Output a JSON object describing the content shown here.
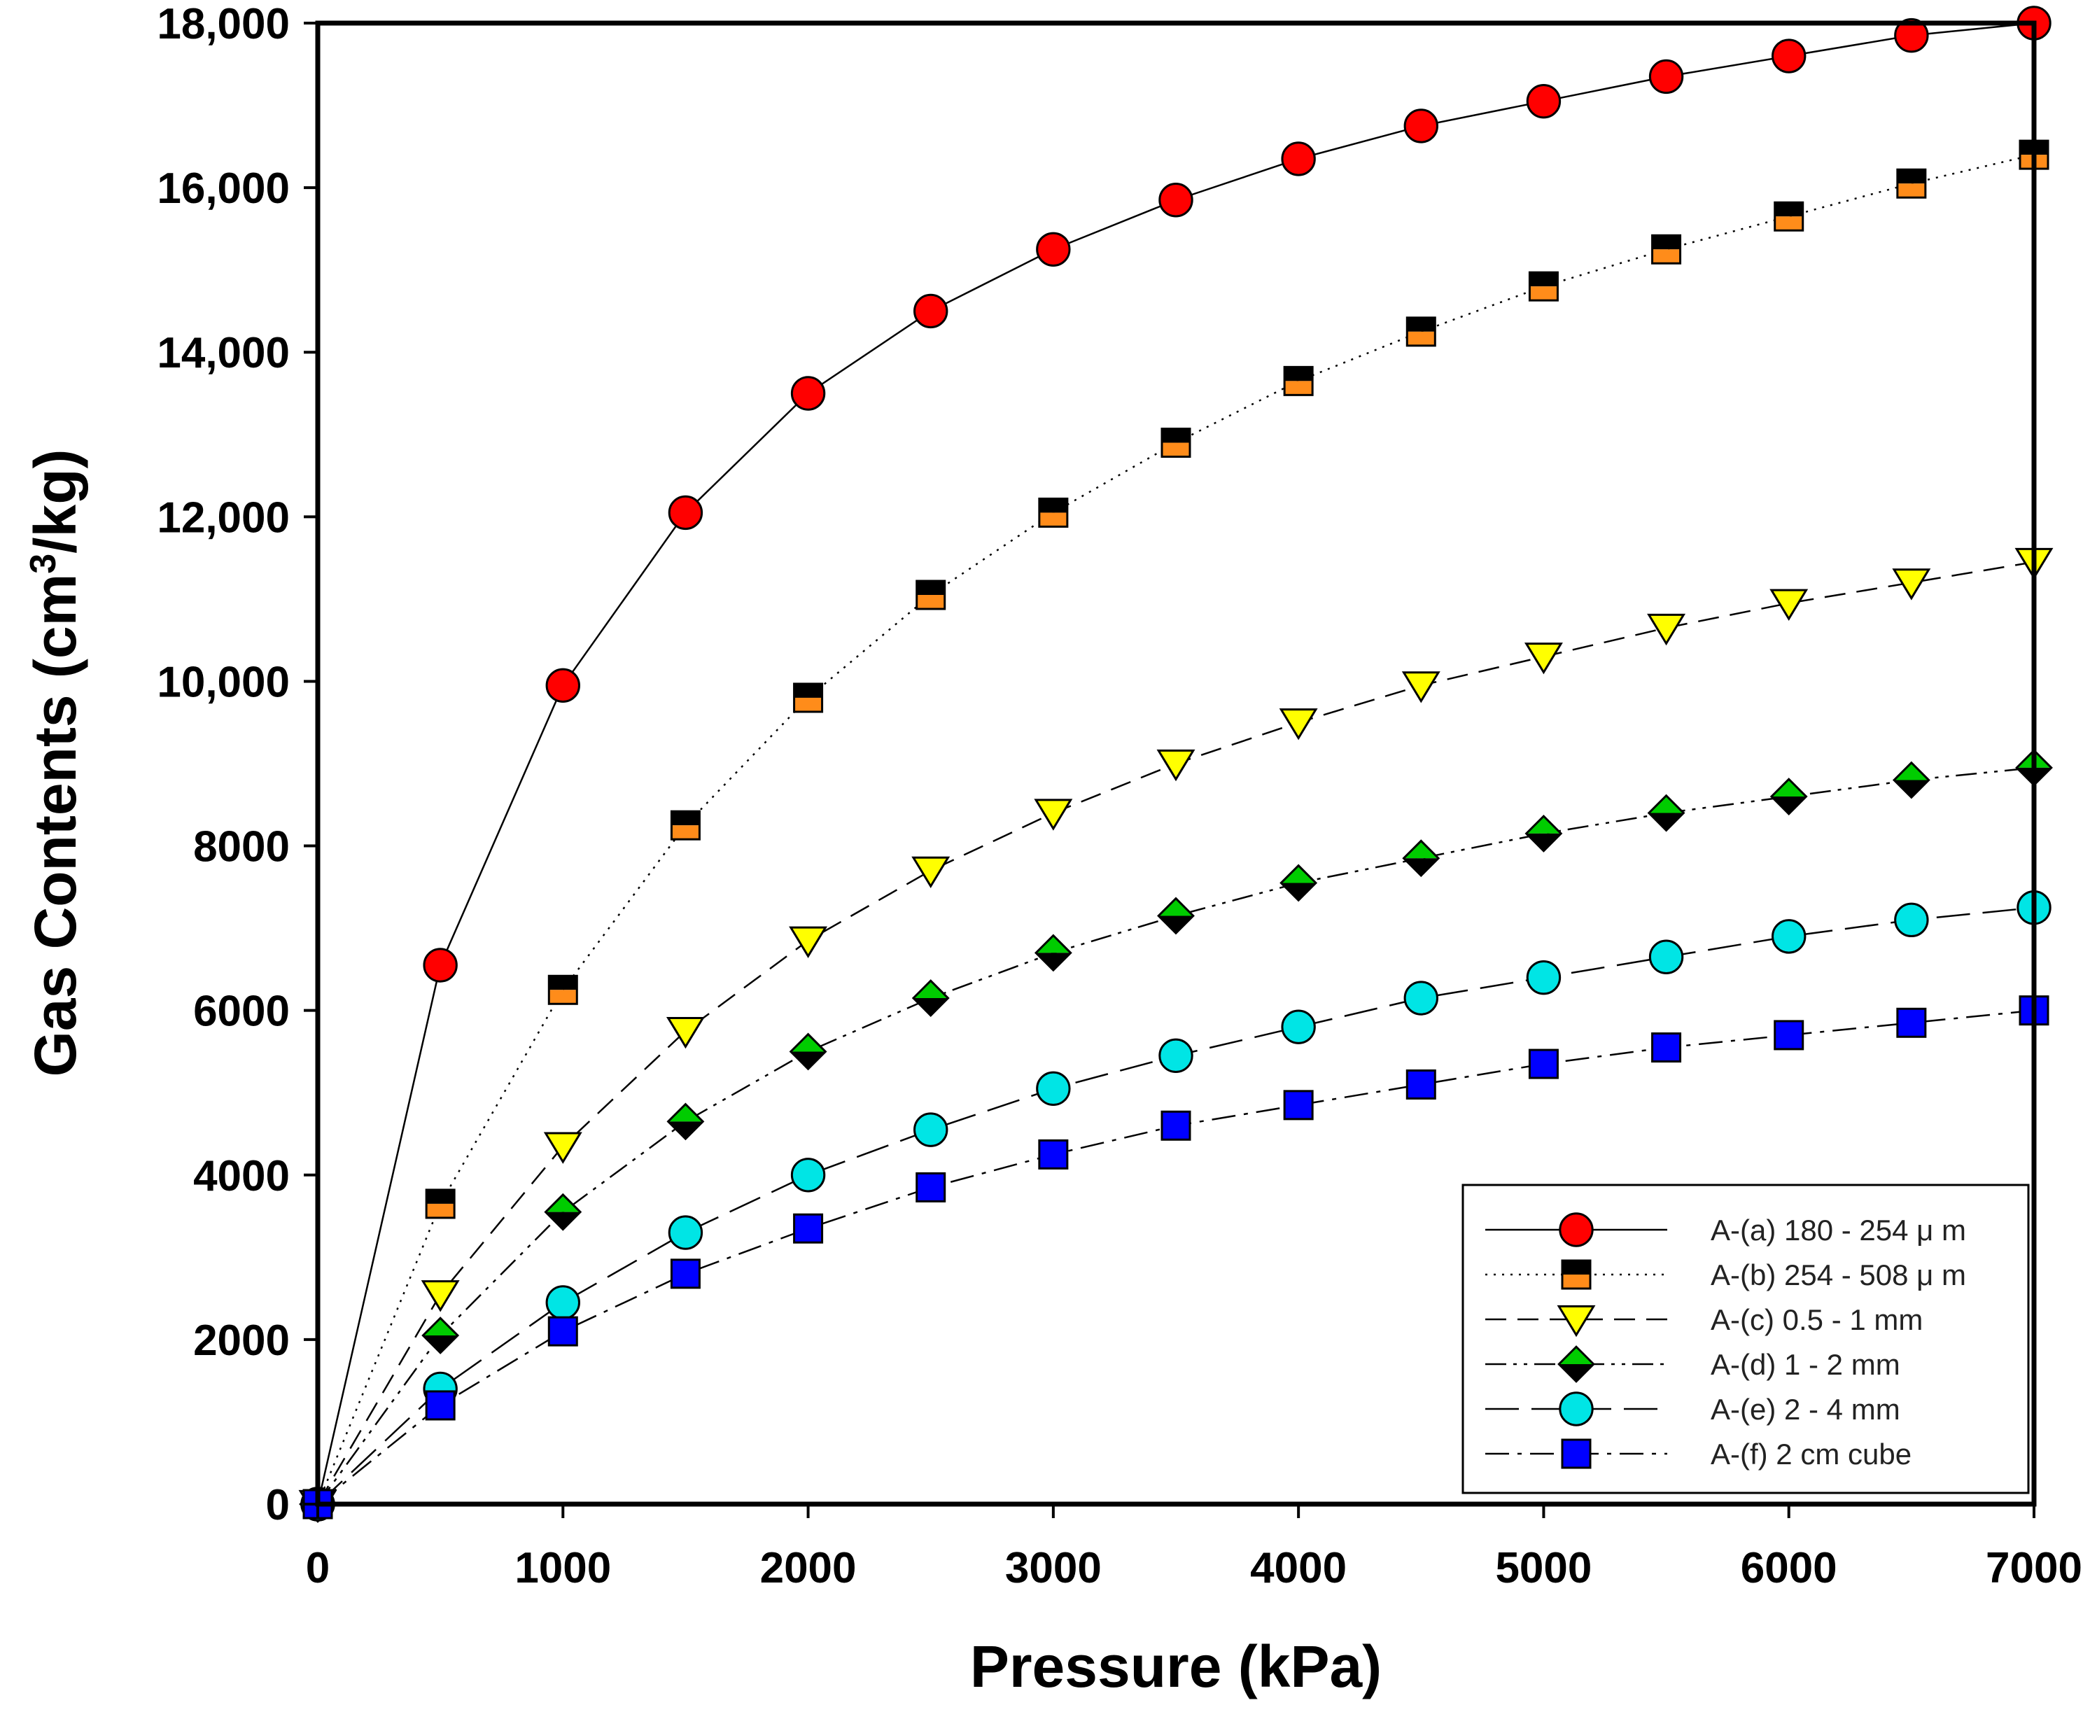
{
  "chart_data": {
    "type": "line",
    "title": "",
    "xlabel": "Pressure (kPa)",
    "ylabel_main": "Gas Contents (cm",
    "ylabel_sup": "3",
    "ylabel_tail": "/kg)",
    "xlim": [
      0,
      7000
    ],
    "ylim": [
      0,
      18000
    ],
    "xticks": [
      0,
      1000,
      2000,
      3000,
      4000,
      5000,
      6000,
      7000
    ],
    "xtick_labels": [
      "0",
      "1000",
      "2000",
      "3000",
      "4000",
      "5000",
      "6000",
      "7000"
    ],
    "yticks": [
      0,
      2000,
      4000,
      6000,
      8000,
      10000,
      12000,
      14000,
      16000,
      18000
    ],
    "ytick_labels": [
      "0",
      "2000",
      "4000",
      "6000",
      "8000",
      "10,000",
      "12,000",
      "14,000",
      "16,000",
      "18,000"
    ],
    "grid": false,
    "legend_position": "bottom-right",
    "x": [
      0,
      500,
      1000,
      1500,
      2000,
      2500,
      3000,
      3500,
      4000,
      4500,
      5000,
      5500,
      6000,
      6500,
      7000
    ],
    "series": [
      {
        "name": "A-(a) 180 - 254 μ m",
        "marker": "circle",
        "line": "solid",
        "colors": [
          "#ff0000"
        ],
        "values": [
          0,
          6550,
          9950,
          12050,
          13500,
          14500,
          15250,
          15850,
          16350,
          16750,
          17050,
          17350,
          17600,
          17850,
          18000
        ]
      },
      {
        "name": "A-(b) 254 - 508 μ m",
        "marker": "square-split",
        "line": "dotted",
        "colors": [
          "#000000",
          "#ff8c1a"
        ],
        "values": [
          0,
          3650,
          6250,
          8250,
          9800,
          11050,
          12050,
          12900,
          13650,
          14250,
          14800,
          15250,
          15650,
          16050,
          16400
        ]
      },
      {
        "name": "A-(c) 0.5 - 1 mm",
        "marker": "triangle-down",
        "line": "dashed",
        "colors": [
          "#ffff00"
        ],
        "values": [
          0,
          2550,
          4350,
          5750,
          6850,
          7700,
          8400,
          9000,
          9500,
          9950,
          10300,
          10650,
          10950,
          11200,
          11450
        ]
      },
      {
        "name": "A-(d) 1 - 2 mm",
        "marker": "diamond-split",
        "line": "dash-dot-dot",
        "colors": [
          "#00cc00",
          "#000000"
        ],
        "values": [
          0,
          2050,
          3550,
          4650,
          5500,
          6150,
          6700,
          7150,
          7550,
          7850,
          8150,
          8400,
          8600,
          8800,
          8950
        ]
      },
      {
        "name": "A-(e) 2 - 4 mm",
        "marker": "circle",
        "line": "long-dash",
        "colors": [
          "#00e5e5"
        ],
        "values": [
          0,
          1400,
          2450,
          3300,
          4000,
          4550,
          5050,
          5450,
          5800,
          6150,
          6400,
          6650,
          6900,
          7100,
          7250
        ]
      },
      {
        "name": "A-(f) 2 cm cube",
        "marker": "square",
        "line": "dash-dot",
        "colors": [
          "#0000ff"
        ],
        "values": [
          0,
          1200,
          2100,
          2800,
          3350,
          3850,
          4250,
          4600,
          4850,
          5100,
          5350,
          5550,
          5700,
          5850,
          6000
        ]
      }
    ]
  }
}
